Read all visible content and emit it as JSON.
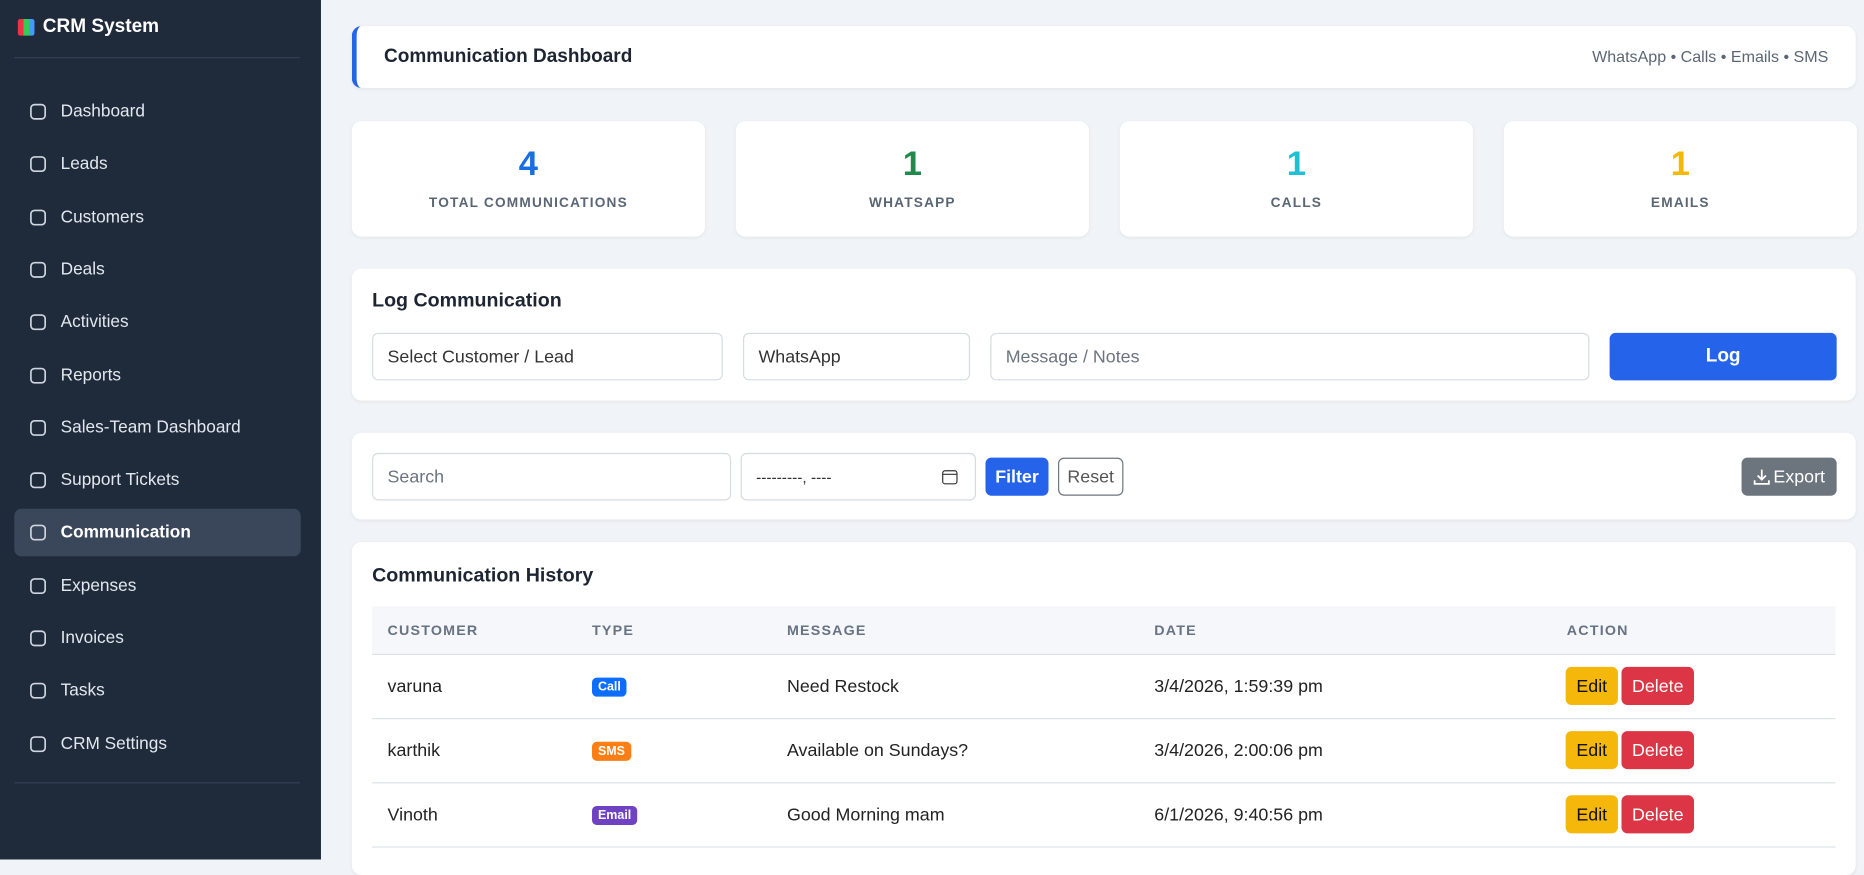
{
  "sidebar": {
    "brand": "CRM System",
    "nav": [
      "Dashboard",
      "Leads",
      "Customers",
      "Deals",
      "Activities",
      "Reports",
      "Sales-Team Dashboard",
      "Support Tickets",
      "Communication",
      "Expenses",
      "Invoices",
      "Tasks",
      "CRM Settings"
    ],
    "active": 8
  },
  "header": {
    "title": "Communication Dashboard",
    "subtitle": "WhatsApp • Calls • Emails • SMS"
  },
  "stats": [
    {
      "value": 4,
      "label": "TOTAL COMMUNICATIONS",
      "color": "#1a6fe0"
    },
    {
      "value": 1,
      "label": "WHATSAPP",
      "color": "#1f8a4c"
    },
    {
      "value": 1,
      "label": "CALLS",
      "color": "#20bfd6"
    },
    {
      "value": 1,
      "label": "EMAILS",
      "color": "#f5b70a"
    }
  ],
  "log_form": {
    "title": "Log Communication",
    "customer": "Select Customer / Lead",
    "channel": "WhatsApp",
    "message": "Message / Notes",
    "button": "Log"
  },
  "filters": {
    "search": "Search",
    "date": "---------, ----",
    "filter": "Filter",
    "reset": "Reset",
    "export": "Export"
  },
  "history": {
    "title": "Communication History",
    "columns": [
      "CUSTOMER",
      "TYPE",
      "MESSAGE",
      "DATE",
      "ACTION"
    ],
    "actions": [
      "Edit",
      "Delete"
    ],
    "rows": [
      {
        "customer": "varuna",
        "type": "Call",
        "type_color": "#0d6efd",
        "message": "Need Restock",
        "date": "3/4/2026, 1:59:39 pm"
      },
      {
        "customer": "karthik",
        "type": "SMS",
        "type_color": "#fd7e14",
        "message": "Available on Sundays?",
        "date": "3/4/2026, 2:00:06 pm"
      },
      {
        "customer": "Vinoth",
        "type": "Email",
        "type_color": "#6f42c1",
        "message": "Good Morning mam",
        "date": "6/1/2026, 9:40:56 pm"
      }
    ]
  }
}
